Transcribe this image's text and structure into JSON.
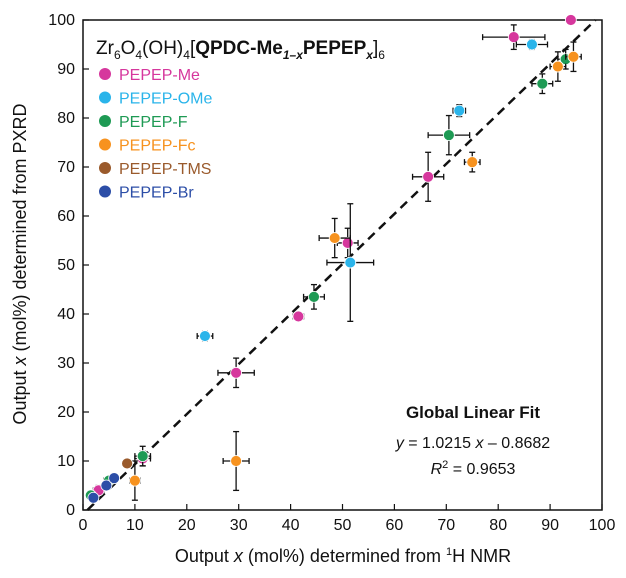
{
  "chart_data": {
    "type": "scatter",
    "title": "Zr6O4(OH)4[QPDC-Me1–xPEPEPx]6",
    "title_parts": {
      "a": "Zr",
      "b": "6",
      "c": "O",
      "d": "4",
      "e": "(OH)",
      "f": "4",
      "g": "[",
      "h": "QPDC-Me",
      "i": "1–x",
      "j": "PEPEP",
      "k": "x",
      "l": "]",
      "m": "6"
    },
    "xlabel": "Output x (mol%) determined from ¹H NMR",
    "xlabel_parts": {
      "a": "Output ",
      "b": "x",
      "c": " (mol%) determined from ",
      "d": "1",
      "e": "H NMR"
    },
    "ylabel": "Output x (mol%) determined from PXRD",
    "ylabel_parts": {
      "a": "Output ",
      "b": "x",
      "c": " (mol%) determined from PXRD"
    },
    "xlim": [
      0,
      100
    ],
    "ylim": [
      0,
      100
    ],
    "xticks": [
      "0",
      "10",
      "20",
      "30",
      "40",
      "50",
      "60",
      "70",
      "80",
      "90",
      "100"
    ],
    "yticks": [
      "0",
      "10",
      "20",
      "30",
      "40",
      "50",
      "60",
      "70",
      "80",
      "90",
      "100"
    ],
    "grid": false,
    "legend_position": "top-left",
    "fit": {
      "title": "Global Linear Fit",
      "equation": "y = 1.0215 x – 0.8682",
      "eq_parts": {
        "a": "y",
        "b": " = 1.0215 ",
        "c": "x",
        "d": " – 0.8682"
      },
      "r2_parts": {
        "a": "R",
        "b": "2",
        "c": " = 0.9653"
      },
      "r2": "R² = 0.9653",
      "slope": 1.0215,
      "intercept": -0.8682
    },
    "series": [
      {
        "name": "PEPEP-Me",
        "color": "#d6379d",
        "points": [
          {
            "x": 3,
            "y": 4,
            "xerr": 1,
            "yerr": 1
          },
          {
            "x": 11.5,
            "y": 10.5,
            "xerr": 1.5,
            "yerr": 1.5
          },
          {
            "x": 29.5,
            "y": 28,
            "xerr": 3.5,
            "yerr": 3
          },
          {
            "x": 41.5,
            "y": 39.5,
            "xerr": 1,
            "yerr": 0.5
          },
          {
            "x": 51,
            "y": 54.5,
            "xerr": 2,
            "yerr": 3
          },
          {
            "x": 66.5,
            "y": 68,
            "xerr": 3,
            "yerr": 5
          },
          {
            "x": 83,
            "y": 96.5,
            "xerr": 6,
            "yerr": 2.5
          },
          {
            "x": 94,
            "y": 100,
            "xerr": 0,
            "yerr": 0
          }
        ]
      },
      {
        "name": "PEPEP-OMe",
        "color": "#2ab4ea",
        "points": [
          {
            "x": 23.5,
            "y": 35.5,
            "xerr": 1.5,
            "yerr": 1
          },
          {
            "x": 51.5,
            "y": 50.5,
            "xerr": 4.5,
            "yerr": 12
          },
          {
            "x": 72.5,
            "y": 81.5,
            "xerr": 1.2,
            "yerr": 1.2
          },
          {
            "x": 86.5,
            "y": 95,
            "xerr": 3,
            "yerr": 1
          }
        ]
      },
      {
        "name": "PEPEP-F",
        "color": "#1e9a54",
        "points": [
          {
            "x": 1.5,
            "y": 3,
            "xerr": 0.5,
            "yerr": 0.5
          },
          {
            "x": 5,
            "y": 6,
            "xerr": 1,
            "yerr": 0.8
          },
          {
            "x": 11.5,
            "y": 11,
            "xerr": 1.5,
            "yerr": 2
          },
          {
            "x": 44.5,
            "y": 43.5,
            "xerr": 2,
            "yerr": 2.5
          },
          {
            "x": 70.5,
            "y": 76.5,
            "xerr": 4,
            "yerr": 4
          },
          {
            "x": 88.5,
            "y": 87,
            "xerr": 2,
            "yerr": 2
          },
          {
            "x": 93,
            "y": 92,
            "xerr": 1.5,
            "yerr": 2
          }
        ]
      },
      {
        "name": "PEPEP-Fc",
        "color": "#f7921e",
        "points": [
          {
            "x": 10,
            "y": 6,
            "xerr": 1,
            "yerr": 4
          },
          {
            "x": 29.5,
            "y": 10,
            "xerr": 2.5,
            "yerr": 6
          },
          {
            "x": 48.5,
            "y": 55.5,
            "xerr": 3,
            "yerr": 4
          },
          {
            "x": 75,
            "y": 71,
            "xerr": 1.5,
            "yerr": 2
          },
          {
            "x": 91.5,
            "y": 90.5,
            "xerr": 1.5,
            "yerr": 3
          },
          {
            "x": 94.5,
            "y": 92.5,
            "xerr": 1.5,
            "yerr": 3
          }
        ]
      },
      {
        "name": "PEPEP-TMS",
        "color": "#9a5a2c",
        "points": [
          {
            "x": 8.5,
            "y": 9.5,
            "xerr": 0.8,
            "yerr": 0.8
          }
        ]
      },
      {
        "name": "PEPEP-Br",
        "color": "#2c4ea7",
        "points": [
          {
            "x": 2,
            "y": 2.5,
            "xerr": 0.5,
            "yerr": 0.5
          },
          {
            "x": 4.5,
            "y": 5,
            "xerr": 0.8,
            "yerr": 0.5
          },
          {
            "x": 6,
            "y": 6.5,
            "xerr": 0.8,
            "yerr": 0.8
          }
        ]
      }
    ]
  }
}
